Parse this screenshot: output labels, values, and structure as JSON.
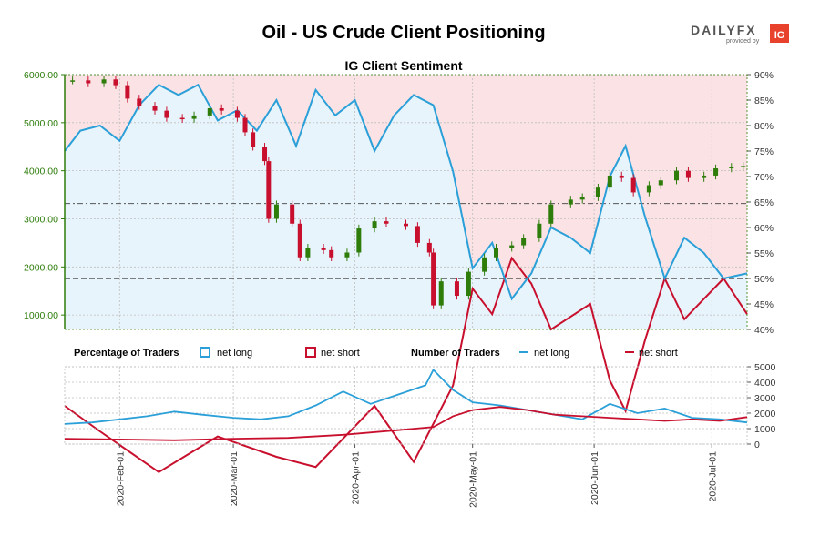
{
  "header": {
    "title": "Oil - US Crude Client Positioning",
    "logo": {
      "brand": "DAILYFX",
      "sub": "provided by",
      "mark": "IG"
    }
  },
  "colors": {
    "net_long": "#2a9fd8",
    "net_short": "#c8102e",
    "short_zone_fill": "#fbe3e5",
    "long_zone_fill": "#e8f4fc",
    "price_axis": "#2e7d0b",
    "candle_up": "#2e7d0b",
    "candle_down": "#c8102e",
    "grid": "#bdbdbd"
  },
  "chart_data": [
    {
      "id": "sentiment",
      "type": "candlestick",
      "title": "IG Client Sentiment",
      "x_range": [
        "2020-01-18",
        "2020-07-10"
      ],
      "y_left_range": [
        700,
        6000
      ],
      "y_left_ticks": [
        "6000.00",
        "5000.00",
        "4000.00",
        "3000.00",
        "2000.00",
        "1000.00"
      ],
      "y_left_tick_values": [
        6000,
        5000,
        4000,
        3000,
        2000,
        1000
      ],
      "y_right_range": [
        40,
        90
      ],
      "y_right_ticks": [
        "90%",
        "85%",
        "80%",
        "75%",
        "70%",
        "65%",
        "60%",
        "55%",
        "50%",
        "45%",
        "40%"
      ],
      "y_right_tick_values": [
        90,
        85,
        80,
        75,
        70,
        65,
        60,
        55,
        50,
        45,
        40
      ],
      "reference_lines_pct": [
        50,
        64.7
      ],
      "price": [
        [
          "2020-01-20",
          5880
        ],
        [
          "2020-01-24",
          5820
        ],
        [
          "2020-01-28",
          5900
        ],
        [
          "2020-01-31",
          5780
        ],
        [
          "2020-02-03",
          5500
        ],
        [
          "2020-02-06",
          5350
        ],
        [
          "2020-02-10",
          5250
        ],
        [
          "2020-02-13",
          5100
        ],
        [
          "2020-02-17",
          5080
        ],
        [
          "2020-02-20",
          5150
        ],
        [
          "2020-02-24",
          5300
        ],
        [
          "2020-02-27",
          5250
        ],
        [
          "2020-03-02",
          5100
        ],
        [
          "2020-03-04",
          4800
        ],
        [
          "2020-03-06",
          4500
        ],
        [
          "2020-03-09",
          4200
        ],
        [
          "2020-03-10",
          3000
        ],
        [
          "2020-03-12",
          3300
        ],
        [
          "2020-03-16",
          2900
        ],
        [
          "2020-03-18",
          2200
        ],
        [
          "2020-03-20",
          2400
        ],
        [
          "2020-03-24",
          2350
        ],
        [
          "2020-03-26",
          2200
        ],
        [
          "2020-03-30",
          2300
        ],
        [
          "2020-04-02",
          2800
        ],
        [
          "2020-04-06",
          2950
        ],
        [
          "2020-04-09",
          2900
        ],
        [
          "2020-04-14",
          2850
        ],
        [
          "2020-04-17",
          2500
        ],
        [
          "2020-04-20",
          2300
        ],
        [
          "2020-04-21",
          1200
        ],
        [
          "2020-04-23",
          1700
        ],
        [
          "2020-04-27",
          1400
        ],
        [
          "2020-04-30",
          1900
        ],
        [
          "2020-05-04",
          2200
        ],
        [
          "2020-05-07",
          2400
        ],
        [
          "2020-05-11",
          2450
        ],
        [
          "2020-05-14",
          2600
        ],
        [
          "2020-05-18",
          2900
        ],
        [
          "2020-05-21",
          3300
        ],
        [
          "2020-05-26",
          3400
        ],
        [
          "2020-05-29",
          3450
        ],
        [
          "2020-06-02",
          3650
        ],
        [
          "2020-06-05",
          3900
        ],
        [
          "2020-06-08",
          3850
        ],
        [
          "2020-06-11",
          3550
        ],
        [
          "2020-06-15",
          3700
        ],
        [
          "2020-06-18",
          3800
        ],
        [
          "2020-06-22",
          4000
        ],
        [
          "2020-06-25",
          3850
        ],
        [
          "2020-06-29",
          3900
        ],
        [
          "2020-07-02",
          4050
        ],
        [
          "2020-07-06",
          4080
        ],
        [
          "2020-07-09",
          4100
        ]
      ],
      "net_long_pct": [
        [
          "2020-01-18",
          75
        ],
        [
          "2020-01-22",
          79
        ],
        [
          "2020-01-27",
          80
        ],
        [
          "2020-02-01",
          77
        ],
        [
          "2020-02-06",
          84
        ],
        [
          "2020-02-11",
          88
        ],
        [
          "2020-02-16",
          86
        ],
        [
          "2020-02-21",
          88
        ],
        [
          "2020-02-26",
          81
        ],
        [
          "2020-03-02",
          83
        ],
        [
          "2020-03-07",
          79
        ],
        [
          "2020-03-12",
          85
        ],
        [
          "2020-03-17",
          76
        ],
        [
          "2020-03-22",
          87
        ],
        [
          "2020-03-27",
          82
        ],
        [
          "2020-04-01",
          85
        ],
        [
          "2020-04-06",
          75
        ],
        [
          "2020-04-11",
          82
        ],
        [
          "2020-04-16",
          86
        ],
        [
          "2020-04-21",
          84
        ],
        [
          "2020-04-26",
          71
        ],
        [
          "2020-05-01",
          52
        ],
        [
          "2020-05-06",
          57
        ],
        [
          "2020-05-11",
          46
        ],
        [
          "2020-05-16",
          51
        ],
        [
          "2020-05-21",
          60
        ],
        [
          "2020-05-26",
          58
        ],
        [
          "2020-05-31",
          55
        ],
        [
          "2020-06-05",
          70
        ],
        [
          "2020-06-09",
          76
        ],
        [
          "2020-06-14",
          62
        ],
        [
          "2020-06-19",
          50
        ],
        [
          "2020-06-24",
          58
        ],
        [
          "2020-06-29",
          55
        ],
        [
          "2020-07-04",
          50
        ],
        [
          "2020-07-10",
          51
        ]
      ],
      "net_short_pct": [
        [
          "2020-01-18",
          25
        ],
        [
          "2020-01-27",
          20
        ],
        [
          "2020-02-11",
          12
        ],
        [
          "2020-02-26",
          19
        ],
        [
          "2020-03-12",
          15
        ],
        [
          "2020-03-22",
          13
        ],
        [
          "2020-04-06",
          25
        ],
        [
          "2020-04-16",
          14
        ],
        [
          "2020-04-26",
          29
        ],
        [
          "2020-05-01",
          48
        ],
        [
          "2020-05-06",
          43
        ],
        [
          "2020-05-11",
          54
        ],
        [
          "2020-05-16",
          49
        ],
        [
          "2020-05-21",
          40
        ],
        [
          "2020-05-31",
          45
        ],
        [
          "2020-06-05",
          30
        ],
        [
          "2020-06-09",
          24
        ],
        [
          "2020-06-14",
          38
        ],
        [
          "2020-06-19",
          50
        ],
        [
          "2020-06-24",
          42
        ],
        [
          "2020-07-04",
          50
        ],
        [
          "2020-07-10",
          43
        ]
      ]
    },
    {
      "id": "traders",
      "type": "line",
      "x_range": [
        "2020-01-18",
        "2020-07-10"
      ],
      "y_range": [
        0,
        5000
      ],
      "y_ticks": [
        "5000",
        "4000",
        "3000",
        "2000",
        "1000",
        "0"
      ],
      "y_tick_values": [
        5000,
        4000,
        3000,
        2000,
        1000,
        0
      ],
      "x_ticks": [
        "2020-Feb-01",
        "2020-Mar-01",
        "2020-Apr-01",
        "2020-May-01",
        "2020-Jun-01",
        "2020-Jul-01"
      ],
      "x_tick_dates": [
        "2020-02-01",
        "2020-03-01",
        "2020-04-01",
        "2020-05-01",
        "2020-06-01",
        "2020-07-01"
      ],
      "series": [
        {
          "name": "net long",
          "values": [
            [
              "2020-01-18",
              1300
            ],
            [
              "2020-01-25",
              1400
            ],
            [
              "2020-02-01",
              1600
            ],
            [
              "2020-02-08",
              1800
            ],
            [
              "2020-02-15",
              2100
            ],
            [
              "2020-02-22",
              1900
            ],
            [
              "2020-03-01",
              1700
            ],
            [
              "2020-03-08",
              1600
            ],
            [
              "2020-03-15",
              1800
            ],
            [
              "2020-03-22",
              2500
            ],
            [
              "2020-03-29",
              3400
            ],
            [
              "2020-04-05",
              2600
            ],
            [
              "2020-04-12",
              3200
            ],
            [
              "2020-04-19",
              3800
            ],
            [
              "2020-04-21",
              4800
            ],
            [
              "2020-04-26",
              3500
            ],
            [
              "2020-05-01",
              2700
            ],
            [
              "2020-05-08",
              2500
            ],
            [
              "2020-05-15",
              2200
            ],
            [
              "2020-05-22",
              1900
            ],
            [
              "2020-05-29",
              1600
            ],
            [
              "2020-06-05",
              2600
            ],
            [
              "2020-06-12",
              2000
            ],
            [
              "2020-06-19",
              2300
            ],
            [
              "2020-06-26",
              1700
            ],
            [
              "2020-07-03",
              1600
            ],
            [
              "2020-07-10",
              1400
            ]
          ]
        },
        {
          "name": "net short",
          "values": [
            [
              "2020-01-18",
              350
            ],
            [
              "2020-02-01",
              300
            ],
            [
              "2020-02-15",
              250
            ],
            [
              "2020-03-01",
              350
            ],
            [
              "2020-03-15",
              400
            ],
            [
              "2020-03-29",
              600
            ],
            [
              "2020-04-12",
              900
            ],
            [
              "2020-04-21",
              1100
            ],
            [
              "2020-04-26",
              1800
            ],
            [
              "2020-05-01",
              2200
            ],
            [
              "2020-05-08",
              2400
            ],
            [
              "2020-05-15",
              2200
            ],
            [
              "2020-05-22",
              1900
            ],
            [
              "2020-05-29",
              1800
            ],
            [
              "2020-06-05",
              1700
            ],
            [
              "2020-06-12",
              1600
            ],
            [
              "2020-06-19",
              1500
            ],
            [
              "2020-06-26",
              1600
            ],
            [
              "2020-07-03",
              1500
            ],
            [
              "2020-07-10",
              1750
            ]
          ]
        }
      ]
    }
  ],
  "legend": {
    "percentage_label": "Percentage of Traders",
    "number_label": "Number of Traders",
    "net_long": "net long",
    "net_short": "net short"
  }
}
